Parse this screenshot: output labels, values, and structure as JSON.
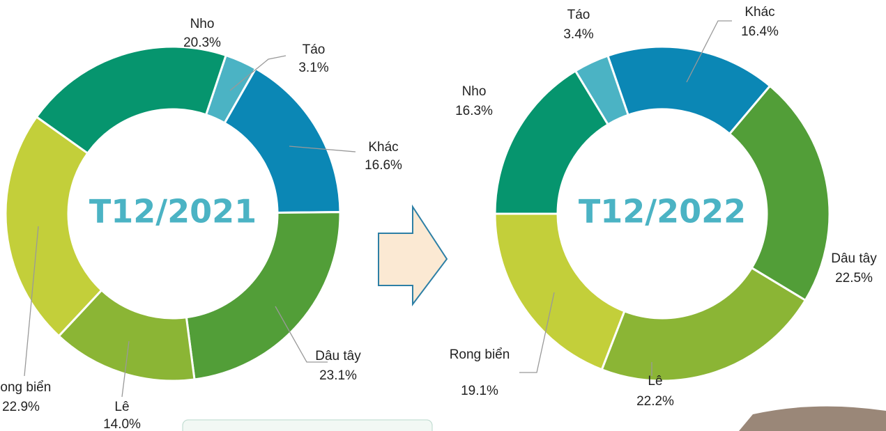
{
  "chart_data": [
    {
      "type": "pie",
      "center_label": "T12/2021",
      "categories": [
        "Táo",
        "Khác",
        "Dâu tây",
        "Lê",
        "Rong biển",
        "Nho"
      ],
      "values": [
        3.1,
        16.6,
        23.1,
        14.0,
        22.9,
        20.3
      ],
      "value_labels": [
        "3.1%",
        "16.6%",
        "23.1%",
        "14.0%",
        "22.9%",
        "20.3%"
      ],
      "colors": [
        "#4bb3c4",
        "#0b87b5",
        "#529e38",
        "#8bb535",
        "#c3cf3a",
        "#06956e"
      ]
    },
    {
      "type": "pie",
      "center_label": "T12/2022",
      "categories": [
        "Khác",
        "Dâu tây",
        "Lê",
        "Rong biển",
        "Nho",
        "Táo"
      ],
      "values": [
        16.4,
        22.5,
        22.2,
        19.1,
        16.3,
        3.4
      ],
      "value_labels": [
        "16.4%",
        "22.5%",
        "22.2%",
        "19.1%",
        "16.3%",
        "3.4%"
      ],
      "colors": [
        "#0b87b5",
        "#529e38",
        "#8bb535",
        "#c3cf3a",
        "#06956e",
        "#4bb3c4"
      ]
    }
  ]
}
